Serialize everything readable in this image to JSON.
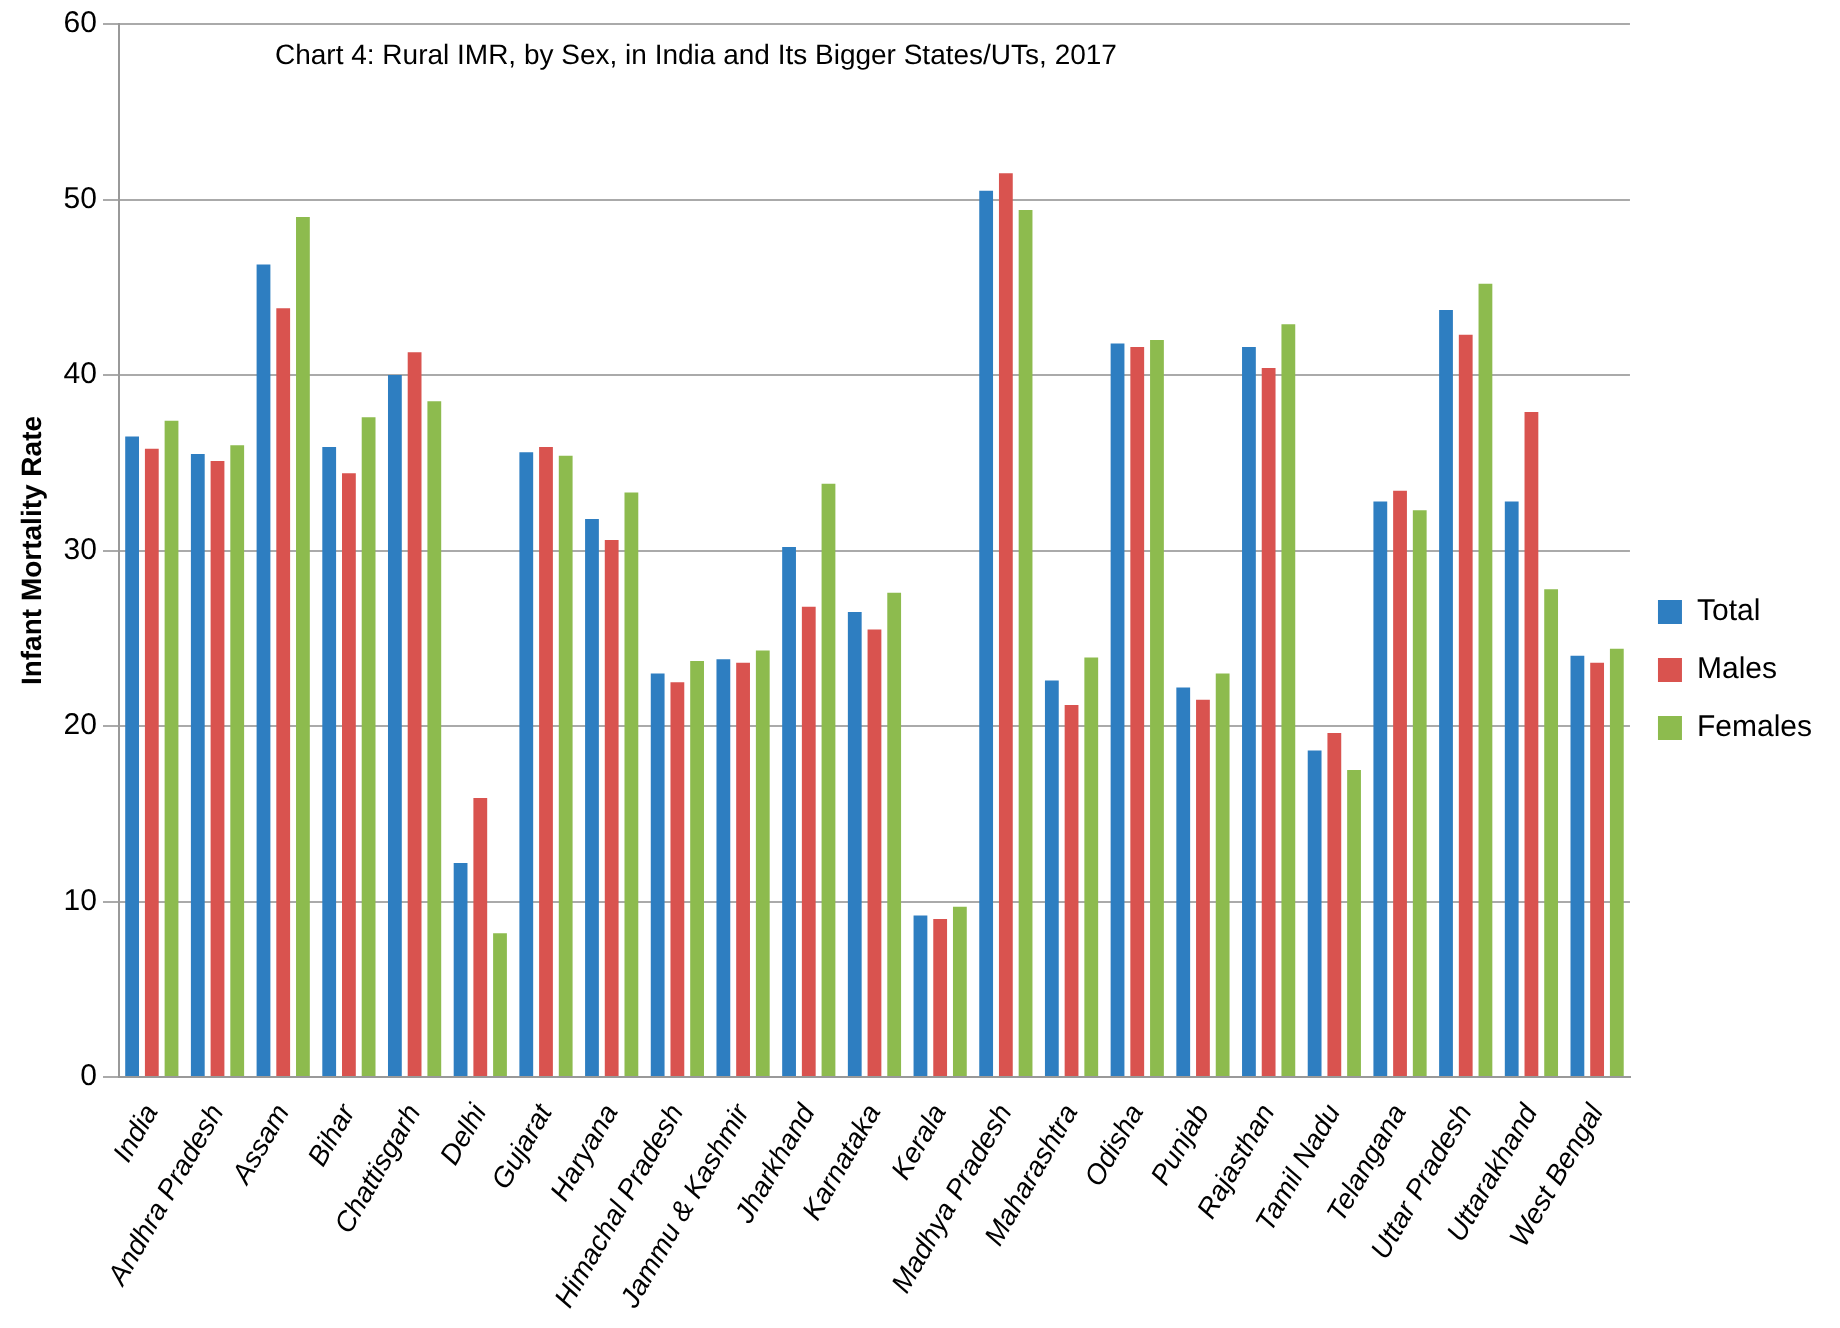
{
  "chart_data": {
    "type": "bar",
    "title": "Chart 4: Rural IMR, by Sex, in India and Its Bigger States/UTs, 2017",
    "ylabel": "Infant Mortality Rate",
    "categories": [
      "India",
      "Andhra Pradesh",
      "Assam",
      "Bihar",
      "Chattisgarh",
      "Delhi",
      "Gujarat",
      "Haryana",
      "Himachal Pradesh",
      "Jammu & Kashmir",
      "Jharkhand",
      "Karnataka",
      "Kerala",
      "Madhya Pradesh",
      "Maharashtra",
      "Odisha",
      "Punjab",
      "Rajasthan",
      "Tamil Nadu",
      "Telangana",
      "Uttar Pradesh",
      "Uttarakhand",
      "West Bengal"
    ],
    "series": [
      {
        "name": "Total",
        "color": "#2e7ec1",
        "values": [
          36.5,
          35.5,
          46.3,
          35.9,
          40.0,
          12.2,
          35.6,
          31.8,
          23.0,
          23.8,
          30.2,
          26.5,
          9.2,
          50.5,
          22.6,
          41.8,
          22.2,
          41.6,
          18.6,
          32.8,
          43.7,
          32.8,
          24.0
        ]
      },
      {
        "name": "Males",
        "color": "#d9534f",
        "values": [
          35.8,
          35.1,
          43.8,
          34.4,
          41.3,
          15.9,
          35.9,
          30.6,
          22.5,
          23.6,
          26.8,
          25.5,
          9.0,
          51.5,
          21.2,
          41.6,
          21.5,
          40.4,
          19.6,
          33.4,
          42.3,
          37.9,
          23.6
        ]
      },
      {
        "name": "Females",
        "color": "#8dbb4e",
        "values": [
          37.4,
          36.0,
          49.0,
          37.6,
          38.5,
          8.2,
          35.4,
          33.3,
          23.7,
          24.3,
          33.8,
          27.6,
          9.7,
          49.4,
          23.9,
          42.0,
          23.0,
          42.9,
          17.5,
          32.3,
          45.2,
          27.8,
          24.4
        ]
      }
    ],
    "ylim": [
      0,
      60
    ],
    "yticks": [
      0,
      10,
      20,
      30,
      40,
      50,
      60
    ],
    "grid": "y",
    "legend": "right"
  }
}
